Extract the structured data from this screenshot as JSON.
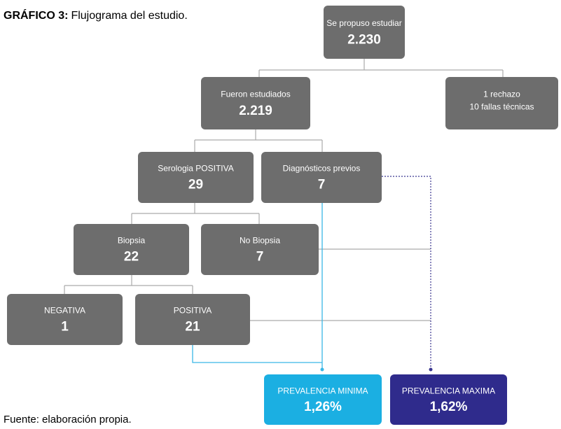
{
  "title": {
    "label": "GRÁFICO 3:",
    "text": "Flujograma del estudio."
  },
  "nodes": [
    {
      "label": "Se propuso estudiar",
      "value": "2.230"
    },
    {
      "label": "Fueron estudiados",
      "value": "2.219"
    },
    {
      "label": "1 rechazo",
      "value": "10 fallas técnicas"
    },
    {
      "label": "Serologia POSITIVA",
      "value": "29"
    },
    {
      "label": "Diagnósticos previos",
      "value": "7"
    },
    {
      "label": "Biopsia",
      "value": "22"
    },
    {
      "label": "No Biopsia",
      "value": "7"
    },
    {
      "label": "NEGATIVA",
      "value": "1"
    },
    {
      "label": "POSITIVA",
      "value": "21"
    },
    {
      "label": "PREVALENCIA MINIMA",
      "value": "1,26%"
    },
    {
      "label": "PREVALENCIA MAXIMA",
      "value": "1,62%"
    }
  ],
  "footer": "Fuente: elaboración propia."
}
